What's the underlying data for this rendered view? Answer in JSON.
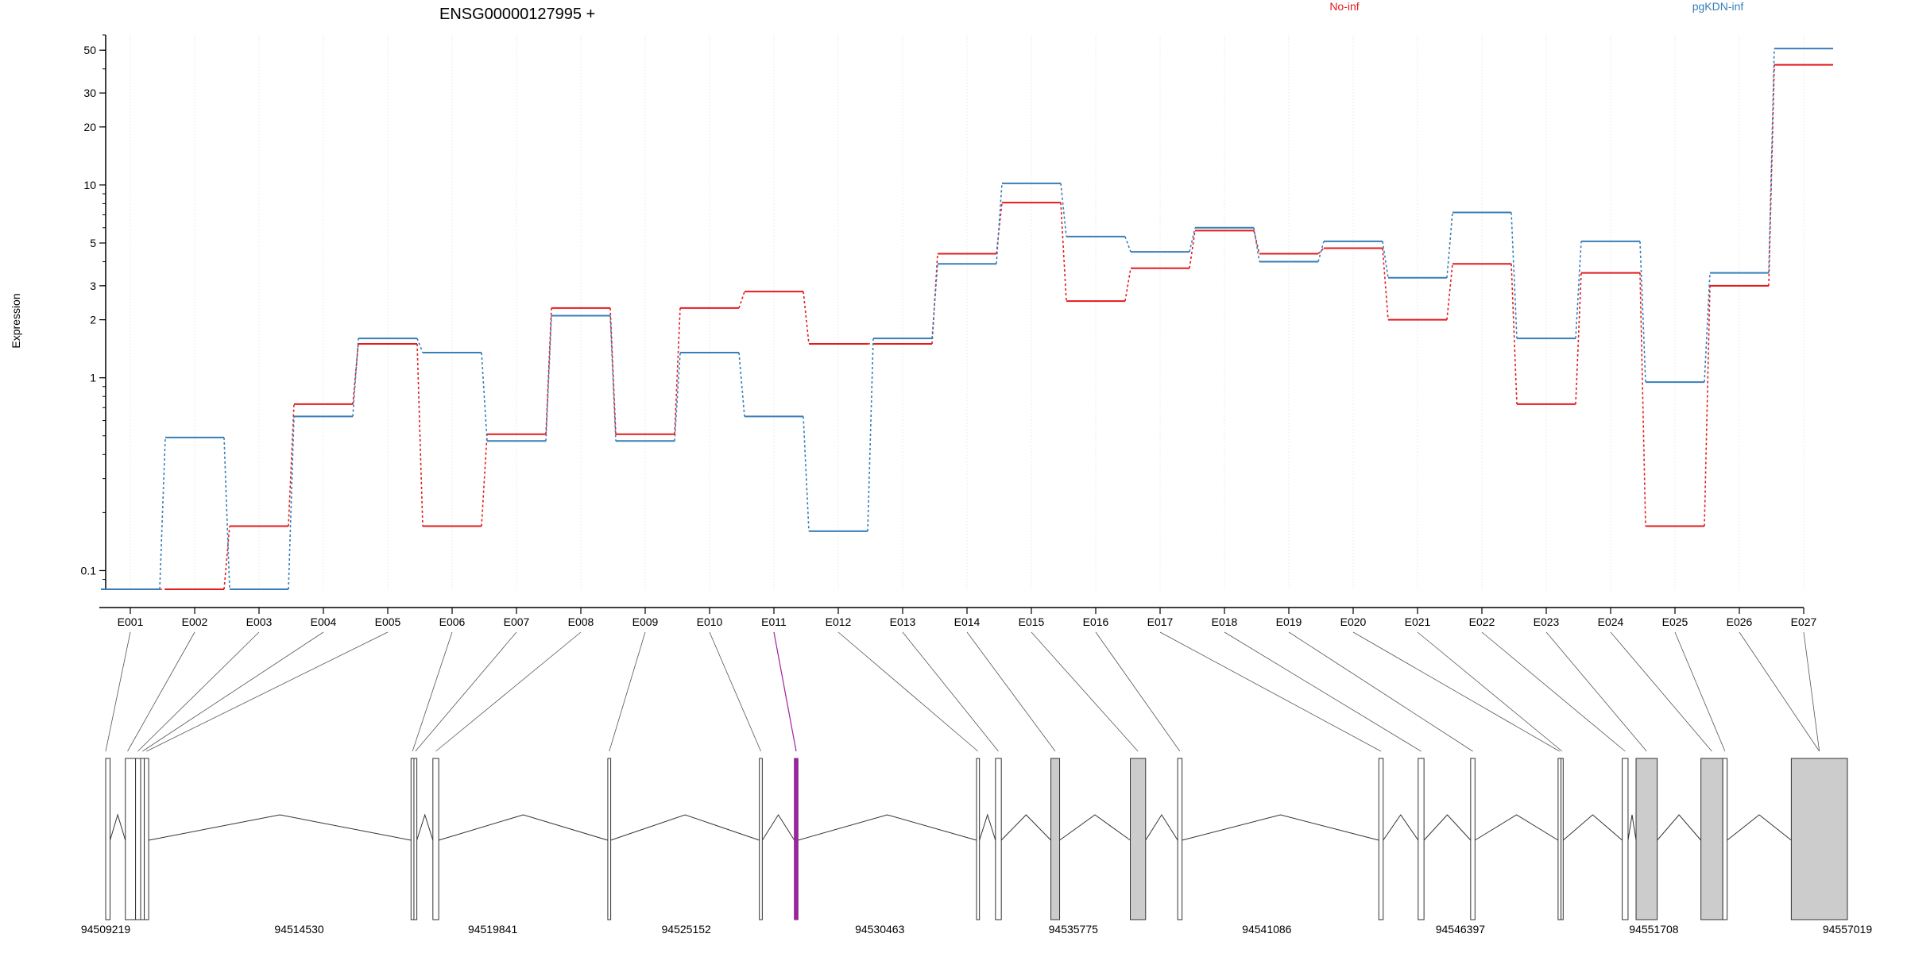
{
  "chart_data": {
    "type": "line",
    "title": "ENSG00000127995 +",
    "ylabel": "Expression",
    "yscale": "log",
    "ylim": [
      0.08,
      60
    ],
    "yticks": [
      0.1,
      1,
      2,
      3,
      5,
      10,
      20,
      30,
      50
    ],
    "ytick_labels": [
      "0.1",
      "1",
      "2",
      "3",
      "5",
      "10",
      "20",
      "30",
      "50"
    ],
    "grid": true,
    "legend_placement": "top",
    "categories": [
      "E001",
      "E002",
      "E003",
      "E004",
      "E005",
      "E006",
      "E007",
      "E008",
      "E009",
      "E010",
      "E011",
      "E012",
      "E013",
      "E014",
      "E015",
      "E016",
      "E017",
      "E018",
      "E019",
      "E020",
      "E021",
      "E022",
      "E023",
      "E024",
      "E025",
      "E026",
      "E027"
    ],
    "series": [
      {
        "name": "No-inf",
        "color": "#e41a1c",
        "values": [
          0.08,
          0.08,
          0.17,
          0.73,
          1.5,
          0.17,
          0.51,
          2.3,
          0.51,
          2.3,
          2.8,
          1.5,
          1.5,
          4.4,
          8.1,
          2.5,
          3.7,
          5.8,
          4.4,
          4.7,
          2.0,
          3.9,
          0.73,
          3.5,
          0.17,
          3.0,
          42.0
        ]
      },
      {
        "name": "pgKDN-inf",
        "color": "#377eb8",
        "values": [
          0.08,
          0.49,
          0.08,
          0.63,
          1.6,
          1.35,
          0.47,
          2.1,
          0.47,
          1.35,
          0.63,
          0.16,
          1.6,
          3.9,
          10.2,
          5.4,
          4.5,
          6.0,
          4.0,
          5.1,
          3.3,
          7.2,
          1.6,
          5.1,
          0.95,
          3.5,
          51.0
        ]
      }
    ],
    "gene_model": {
      "start": 94509219,
      "end": 94557019,
      "tick_labels": [
        "94509219",
        "94514530",
        "94519841",
        "94525152",
        "94530463",
        "94535775",
        "94541086",
        "94546397",
        "94551708",
        "94557019"
      ],
      "highlight_exon": "E011",
      "highlight_color": "#a020a0",
      "exon_fill_expressed": "#cccccc",
      "exons": [
        {
          "s": 94509219,
          "e": 94509339,
          "f": false
        },
        {
          "s": 94509759,
          "e": 94510039,
          "f": false
        },
        {
          "s": 94510039,
          "e": 94510179,
          "f": false
        },
        {
          "s": 94510179,
          "e": 94510279,
          "f": false
        },
        {
          "s": 94510279,
          "e": 94510399,
          "f": false
        },
        {
          "s": 94517599,
          "e": 94517679,
          "f": false
        },
        {
          "s": 94517679,
          "e": 94517759,
          "f": false
        },
        {
          "s": 94518199,
          "e": 94518359,
          "f": false
        },
        {
          "s": 94522999,
          "e": 94523079,
          "f": false
        },
        {
          "s": 94527159,
          "e": 94527239,
          "f": false
        },
        {
          "s": 94528119,
          "e": 94528219,
          "f": false
        },
        {
          "s": 94533119,
          "e": 94533199,
          "f": false
        },
        {
          "s": 94533639,
          "e": 94533799,
          "f": false
        },
        {
          "s": 94535159,
          "e": 94535399,
          "f": true
        },
        {
          "s": 94537339,
          "e": 94537759,
          "f": true
        },
        {
          "s": 94538639,
          "e": 94538759,
          "f": false
        },
        {
          "s": 94544159,
          "e": 94544279,
          "f": false
        },
        {
          "s": 94545239,
          "e": 94545399,
          "f": false
        },
        {
          "s": 94546679,
          "e": 94546799,
          "f": false
        },
        {
          "s": 94549079,
          "e": 94549159,
          "f": false
        },
        {
          "s": 94549159,
          "e": 94549219,
          "f": false
        },
        {
          "s": 94550839,
          "e": 94550999,
          "f": false
        },
        {
          "s": 94551219,
          "e": 94551799,
          "f": true
        },
        {
          "s": 94552999,
          "e": 94553599,
          "f": true
        },
        {
          "s": 94553599,
          "e": 94553719,
          "f": false
        },
        {
          "s": 94555479,
          "e": 94557019,
          "f": true
        }
      ],
      "exon_genomic_pos": [
        94509219,
        94509819,
        94510099,
        94510229,
        94510339,
        94517639,
        94517719,
        94518279,
        94523039,
        94527199,
        94528169,
        94533159,
        94533719,
        94535279,
        94537549,
        94538699,
        94544219,
        94545319,
        94546739,
        94549119,
        94549189,
        94550919,
        94551509,
        94553299,
        94553659,
        94556249,
        94556249
      ]
    }
  }
}
